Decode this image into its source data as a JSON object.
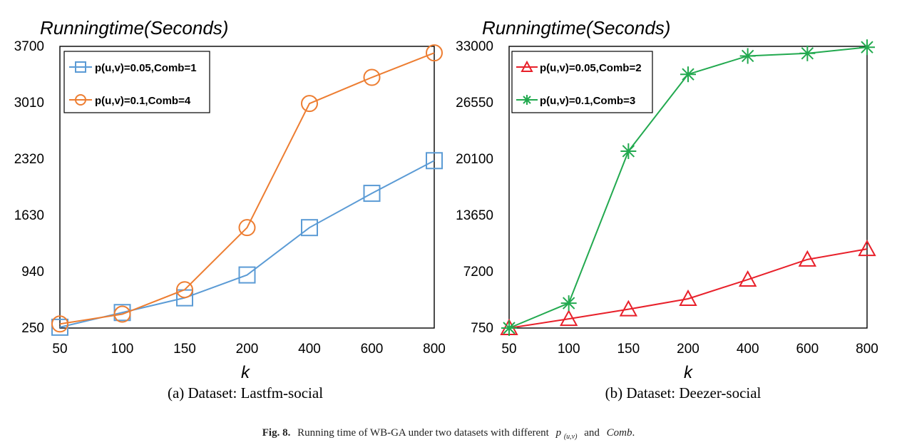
{
  "chart_data": [
    {
      "type": "line",
      "title": "Runningtime(Seconds)",
      "xlabel": "k",
      "caption": "(a) Dataset: Lastfm-social",
      "categories": [
        "50",
        "100",
        "150",
        "200",
        "400",
        "600",
        "800"
      ],
      "ylim": [
        250,
        3700
      ],
      "yticks": [
        "250",
        "940",
        "1630",
        "2320",
        "3010",
        "3700"
      ],
      "grid": false,
      "legend_position": "top-left",
      "series": [
        {
          "name": "p(u,v)=0.05,Comb=1",
          "marker": "square",
          "color": "#5b9bd5",
          "values": [
            260,
            440,
            620,
            900,
            1480,
            1900,
            2300
          ]
        },
        {
          "name": "p(u,v)=0.1,Comb=4",
          "marker": "circle",
          "color": "#ed7d31",
          "values": [
            300,
            420,
            720,
            1480,
            3000,
            3320,
            3620
          ]
        }
      ]
    },
    {
      "type": "line",
      "title": "Runningtime(Seconds)",
      "xlabel": "k",
      "caption": "(b) Dataset: Deezer-social",
      "categories": [
        "50",
        "100",
        "150",
        "200",
        "400",
        "600",
        "800"
      ],
      "ylim": [
        750,
        33000
      ],
      "yticks": [
        "750",
        "7200",
        "13650",
        "20100",
        "26550",
        "33000"
      ],
      "grid": false,
      "legend_position": "top-left",
      "series": [
        {
          "name": "p(u,v)=0.05,Comb=2",
          "marker": "triangle",
          "color": "#e8202a",
          "values": [
            750,
            1800,
            2900,
            4100,
            6300,
            8600,
            9800
          ]
        },
        {
          "name": "p(u,v)=0.1,Comb=3",
          "marker": "star",
          "color": "#22a94f",
          "values": [
            750,
            3600,
            21000,
            29800,
            31900,
            32200,
            32900
          ]
        }
      ]
    }
  ],
  "figure_caption": {
    "label": "Fig. 8.",
    "text_before": "Running time of WB-GA under two datasets with different",
    "p_symbol": "p",
    "p_subscript": "(u,v)",
    "text_and": "and",
    "comb": "Comb",
    "period": "."
  }
}
